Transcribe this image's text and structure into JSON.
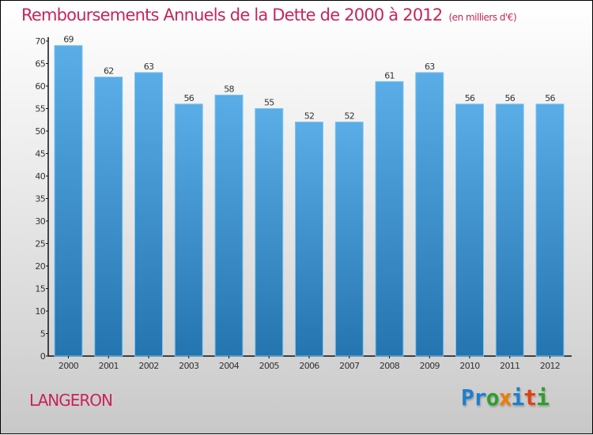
{
  "chart_data": {
    "type": "bar",
    "title": "Remboursements Annuels de la Dette de 2000 à 2012",
    "subtitle": "(en milliers d'€)",
    "categories": [
      "2000",
      "2001",
      "2002",
      "2003",
      "2004",
      "2005",
      "2006",
      "2007",
      "2008",
      "2009",
      "2010",
      "2011",
      "2012"
    ],
    "values": [
      69,
      62,
      63,
      56,
      58,
      55,
      52,
      52,
      61,
      63,
      56,
      56,
      56
    ],
    "xlabel": "",
    "ylabel": "",
    "ylim": [
      0,
      70
    ],
    "yticks": [
      0,
      5,
      10,
      15,
      20,
      25,
      30,
      35,
      40,
      45,
      50,
      55,
      60,
      65,
      70
    ],
    "grid": false,
    "bar_color_top": "#5aade6",
    "bar_color_bottom": "#2474b0"
  },
  "commune": "LANGERON",
  "logo": {
    "letters": [
      "P",
      "r",
      "o",
      "x",
      "i",
      "t",
      "i"
    ],
    "colors": [
      "#1a7fd0",
      "#1a7fd0",
      "#2aa02a",
      "#f07c00",
      "#1a7fd0",
      "#e04010",
      "#2aa02a"
    ]
  }
}
